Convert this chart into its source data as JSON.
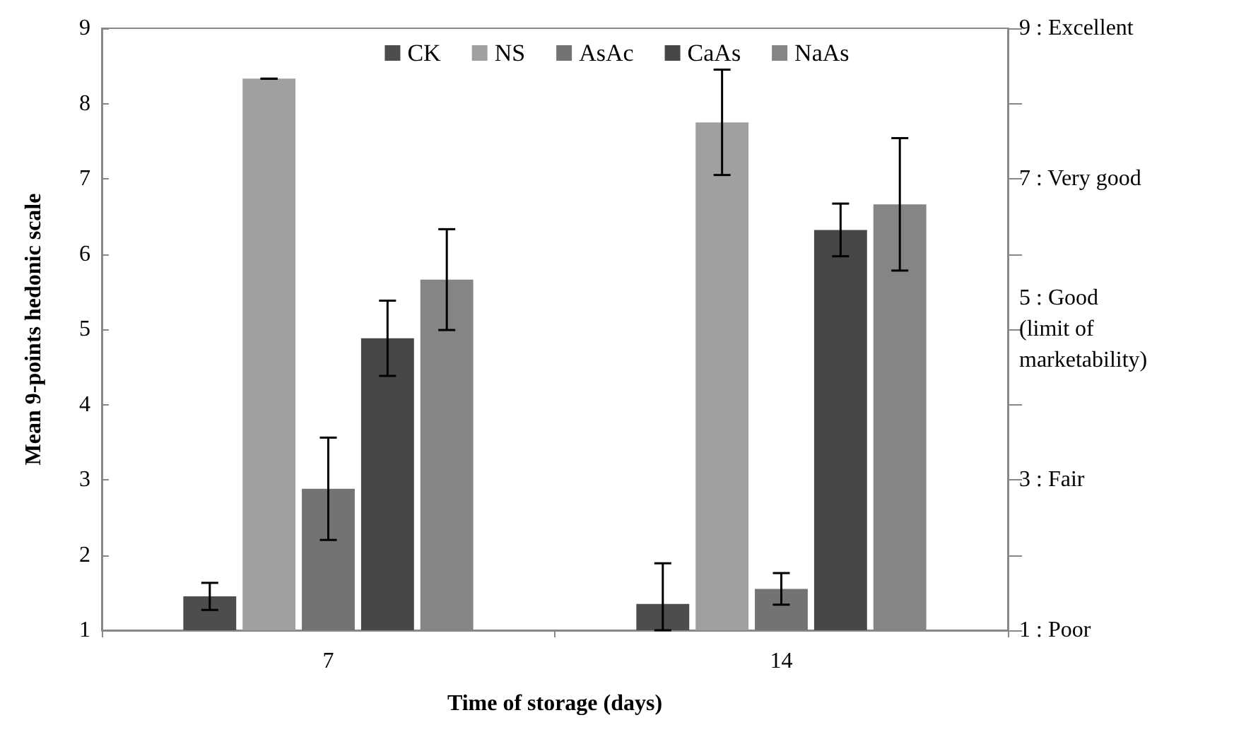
{
  "chart_data": {
    "type": "bar",
    "xlabel": "Time of storage (days)",
    "ylabel": "Mean 9-points hedonic scale",
    "categories": [
      "7",
      "14"
    ],
    "series": [
      {
        "name": "CK",
        "color": "#4d4d4d",
        "values": [
          1.45,
          1.35
        ],
        "errors": [
          0.18,
          [
            1,
            1.89
          ]
        ]
      },
      {
        "name": "NS",
        "color": "#a0a0a0",
        "values": [
          8.33,
          7.75
        ],
        "errors": [
          0,
          0.7
        ]
      },
      {
        "name": "AsAc",
        "color": "#737373",
        "values": [
          2.88,
          1.55
        ],
        "errors": [
          0.68,
          0.21
        ]
      },
      {
        "name": "CaAs",
        "color": "#474747",
        "values": [
          4.88,
          6.32
        ],
        "errors": [
          0.5,
          0.35
        ]
      },
      {
        "name": "NaAs",
        "color": "#858585",
        "values": [
          5.66,
          6.66
        ],
        "errors": [
          0.67,
          0.88
        ]
      }
    ],
    "ylim": [
      1,
      9
    ],
    "yticks": [
      1,
      2,
      3,
      4,
      5,
      6,
      7,
      8,
      9
    ],
    "y2lim": [
      1,
      9
    ],
    "y2ticks": [
      {
        "value": 1,
        "label": "1 : Poor"
      },
      {
        "value": 2,
        "label": null
      },
      {
        "value": 3,
        "label": "3 : Fair"
      },
      {
        "value": 4,
        "label": null
      },
      {
        "value": 5,
        "label": "5 : Good\n(limit of\nmarketability)"
      },
      {
        "value": 6,
        "label": null
      },
      {
        "value": 7,
        "label": "7 : Very good"
      },
      {
        "value": 8,
        "label": null
      },
      {
        "value": 9,
        "label": "9 : Excellent"
      }
    ],
    "grid": false,
    "legend": "top"
  }
}
